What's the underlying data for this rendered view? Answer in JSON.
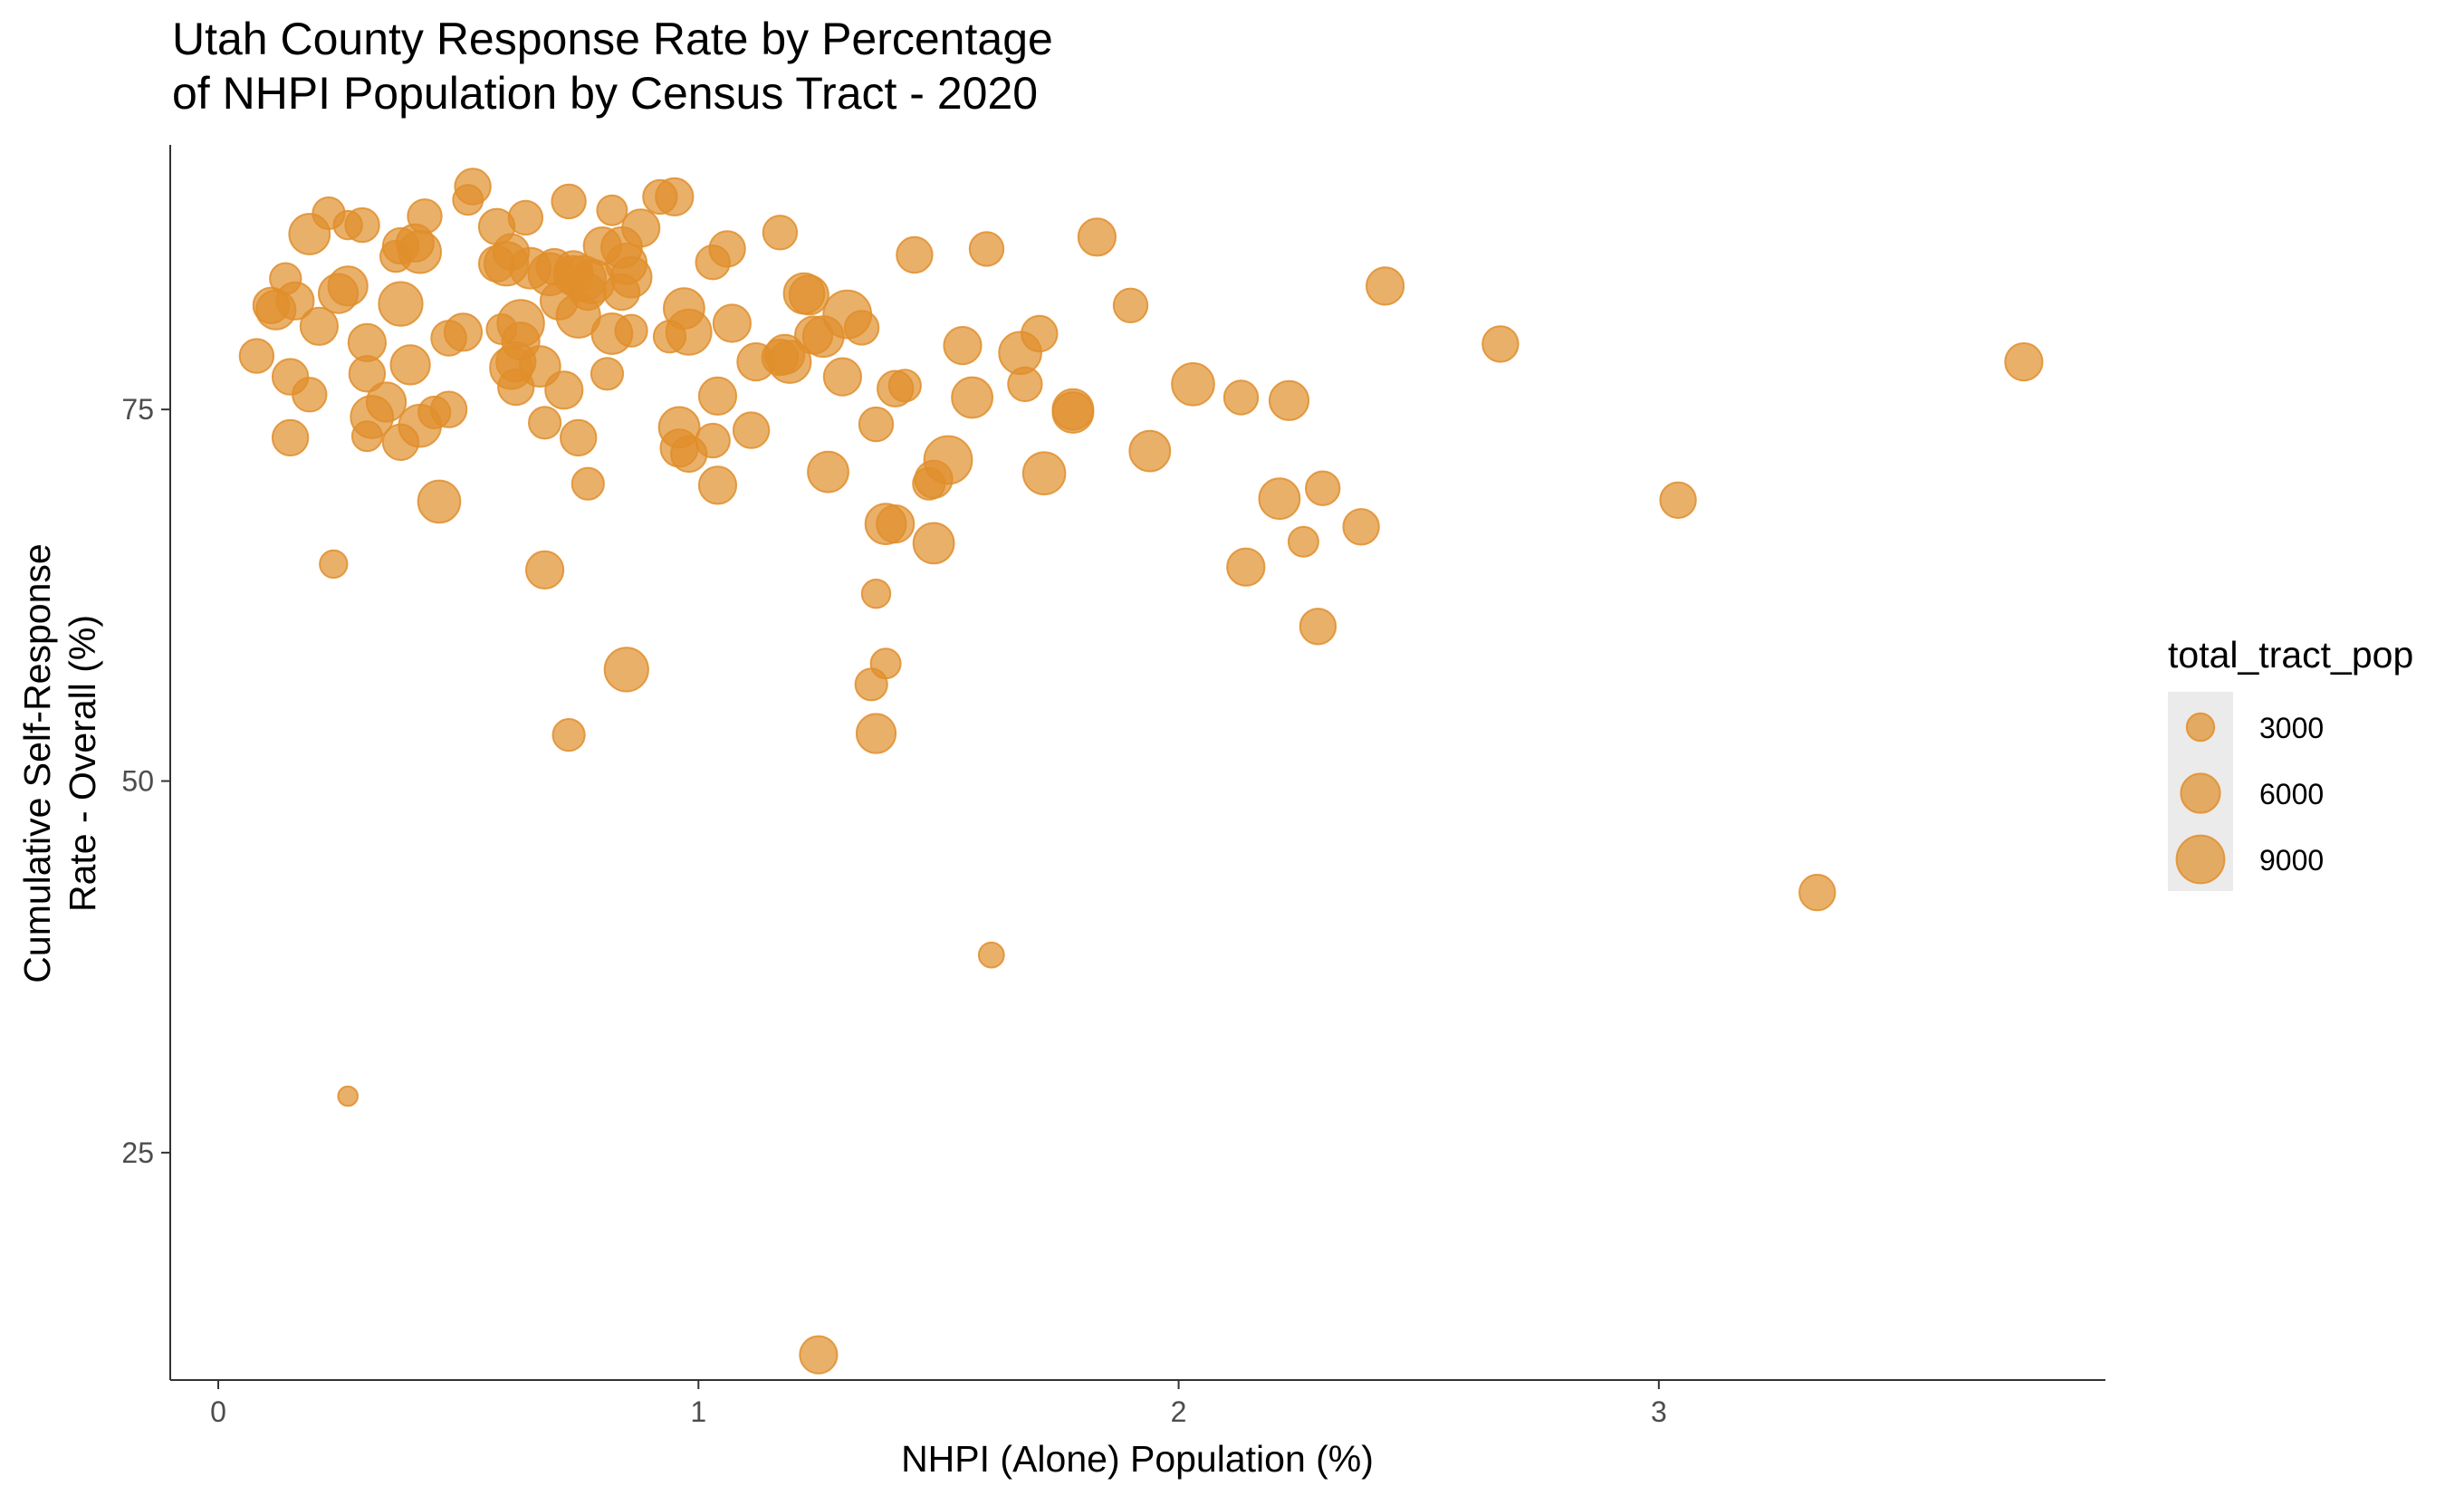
{
  "chart_data": {
    "type": "scatter",
    "title_line1": "Utah County Response Rate by Percentage",
    "title_line2": "of NHPI Population by Census Tract - 2020",
    "xlabel": "NHPI (Alone) Population (%)",
    "ylabel_line1": "Cumulative Self-Response",
    "ylabel_line2": "Rate - Overall (%)",
    "xlim": [
      -0.1,
      3.93
    ],
    "ylim": [
      9.7,
      92.8
    ],
    "x_ticks": [
      0,
      1,
      2,
      3
    ],
    "x_tick_labels": [
      "0",
      "1",
      "2",
      "3"
    ],
    "y_ticks": [
      25,
      50,
      75
    ],
    "y_tick_labels": [
      "25",
      "50",
      "75"
    ],
    "grid": false,
    "legend": {
      "title": "total_tract_pop",
      "position": "right",
      "entries": [
        {
          "label": "3000",
          "size": 3000
        },
        {
          "label": "6000",
          "size": 6000
        },
        {
          "label": "9000",
          "size": 9000
        }
      ]
    },
    "point_color": "#E08E2B",
    "point_opacity": 0.7,
    "points": [
      [
        0.08,
        78.6,
        4500
      ],
      [
        0.11,
        82.0,
        5000
      ],
      [
        0.12,
        81.7,
        6000
      ],
      [
        0.14,
        83.8,
        3800
      ],
      [
        0.15,
        77.2,
        5000
      ],
      [
        0.15,
        73.1,
        5000
      ],
      [
        0.16,
        82.3,
        5500
      ],
      [
        0.19,
        86.8,
        6500
      ],
      [
        0.19,
        76.0,
        4500
      ],
      [
        0.21,
        80.6,
        5500
      ],
      [
        0.23,
        88.2,
        4000
      ],
      [
        0.24,
        64.6,
        3000
      ],
      [
        0.25,
        82.8,
        6000
      ],
      [
        0.27,
        87.4,
        3200
      ],
      [
        0.27,
        28.8,
        1500
      ],
      [
        0.27,
        83.3,
        6000
      ],
      [
        0.3,
        87.4,
        4500
      ],
      [
        0.31,
        79.5,
        5500
      ],
      [
        0.31,
        77.4,
        5000
      ],
      [
        0.31,
        73.2,
        3500
      ],
      [
        0.32,
        74.5,
        7000
      ],
      [
        0.35,
        75.5,
        6000
      ],
      [
        0.37,
        85.3,
        3800
      ],
      [
        0.38,
        72.8,
        5000
      ],
      [
        0.38,
        82.1,
        7500
      ],
      [
        0.38,
        86.0,
        5000
      ],
      [
        0.4,
        78.0,
        6000
      ],
      [
        0.41,
        86.2,
        5500
      ],
      [
        0.42,
        73.9,
        7000
      ],
      [
        0.42,
        85.6,
        7000
      ],
      [
        0.43,
        88.0,
        4500
      ],
      [
        0.45,
        74.8,
        4000
      ],
      [
        0.46,
        68.8,
        7000
      ],
      [
        0.48,
        75.0,
        5000
      ],
      [
        0.48,
        79.8,
        4800
      ],
      [
        0.51,
        80.2,
        5500
      ],
      [
        0.52,
        89.1,
        3500
      ],
      [
        0.53,
        90.0,
        5000
      ],
      [
        0.58,
        87.3,
        5000
      ],
      [
        0.58,
        84.8,
        5000
      ],
      [
        0.59,
        80.4,
        3500
      ],
      [
        0.6,
        84.8,
        7500
      ],
      [
        0.61,
        85.6,
        5000
      ],
      [
        0.61,
        77.8,
        7000
      ],
      [
        0.62,
        76.5,
        5000
      ],
      [
        0.62,
        78.2,
        6000
      ],
      [
        0.63,
        79.6,
        5500
      ],
      [
        0.63,
        80.8,
        8500
      ],
      [
        0.64,
        87.9,
        4500
      ],
      [
        0.65,
        84.5,
        6500
      ],
      [
        0.67,
        77.9,
        6500
      ],
      [
        0.68,
        74.1,
        4000
      ],
      [
        0.68,
        64.2,
        5500
      ],
      [
        0.69,
        84.1,
        7000
      ],
      [
        0.7,
        84.6,
        5000
      ],
      [
        0.71,
        82.3,
        5500
      ],
      [
        0.72,
        76.3,
        5500
      ],
      [
        0.73,
        89.0,
        4500
      ],
      [
        0.73,
        53.1,
        4000
      ],
      [
        0.74,
        84.0,
        6000
      ],
      [
        0.74,
        84.4,
        5500
      ],
      [
        0.75,
        73.1,
        5000
      ],
      [
        0.75,
        81.3,
        7500
      ],
      [
        0.76,
        83.8,
        8000
      ],
      [
        0.77,
        82.9,
        5000
      ],
      [
        0.77,
        70.0,
        4000
      ],
      [
        0.78,
        83.6,
        7500
      ],
      [
        0.8,
        86.0,
        5500
      ],
      [
        0.81,
        77.4,
        4000
      ],
      [
        0.82,
        80.1,
        6500
      ],
      [
        0.82,
        88.4,
        3500
      ],
      [
        0.84,
        85.9,
        6500
      ],
      [
        0.84,
        82.9,
        5000
      ],
      [
        0.85,
        84.8,
        6500
      ],
      [
        0.85,
        57.5,
        7500
      ],
      [
        0.86,
        80.3,
        4000
      ],
      [
        0.86,
        83.9,
        6500
      ],
      [
        0.88,
        87.2,
        5500
      ],
      [
        0.92,
        89.3,
        4500
      ],
      [
        0.94,
        79.9,
        4000
      ],
      [
        0.95,
        89.3,
        5500
      ],
      [
        0.96,
        73.8,
        6500
      ],
      [
        0.96,
        72.4,
        5500
      ],
      [
        0.97,
        81.8,
        6500
      ],
      [
        0.98,
        72.0,
        5000
      ],
      [
        0.98,
        80.2,
        8000
      ],
      [
        1.03,
        84.9,
        4500
      ],
      [
        1.03,
        72.9,
        4500
      ],
      [
        1.04,
        75.9,
        5500
      ],
      [
        1.04,
        69.9,
        5500
      ],
      [
        1.06,
        85.8,
        5000
      ],
      [
        1.07,
        80.8,
        5500
      ],
      [
        1.11,
        73.6,
        5000
      ],
      [
        1.12,
        78.2,
        5500
      ],
      [
        1.17,
        78.5,
        5000
      ],
      [
        1.17,
        86.9,
        4500
      ],
      [
        1.18,
        78.7,
        6000
      ],
      [
        1.19,
        78.2,
        7000
      ],
      [
        1.22,
        82.8,
        6500
      ],
      [
        1.23,
        82.7,
        6000
      ],
      [
        1.24,
        80.0,
        5500
      ],
      [
        1.25,
        11.4,
        5500
      ],
      [
        1.26,
        79.9,
        6500
      ],
      [
        1.27,
        70.8,
        6500
      ],
      [
        1.3,
        77.2,
        5500
      ],
      [
        1.31,
        81.4,
        9000
      ],
      [
        1.34,
        80.5,
        4500
      ],
      [
        1.36,
        56.5,
        4000
      ],
      [
        1.37,
        62.6,
        3200
      ],
      [
        1.37,
        53.2,
        6000
      ],
      [
        1.37,
        74.0,
        4500
      ],
      [
        1.39,
        67.3,
        6500
      ],
      [
        1.39,
        57.9,
        3500
      ],
      [
        1.41,
        67.3,
        5500
      ],
      [
        1.41,
        76.4,
        5000
      ],
      [
        1.43,
        76.6,
        4000
      ],
      [
        1.45,
        85.4,
        5000
      ],
      [
        1.48,
        70.0,
        4000
      ],
      [
        1.49,
        66.0,
        6500
      ],
      [
        1.49,
        70.3,
        5500
      ],
      [
        1.52,
        71.6,
        9000
      ],
      [
        1.55,
        79.3,
        5500
      ],
      [
        1.57,
        75.8,
        6500
      ],
      [
        1.6,
        85.8,
        4500
      ],
      [
        1.61,
        38.3,
        2500
      ],
      [
        1.67,
        78.8,
        7000
      ],
      [
        1.68,
        76.7,
        4500
      ],
      [
        1.71,
        80.1,
        5000
      ],
      [
        1.72,
        70.7,
        7000
      ],
      [
        1.78,
        75.0,
        6500
      ],
      [
        1.78,
        74.8,
        6500
      ],
      [
        1.83,
        86.6,
        5500
      ],
      [
        1.9,
        82.0,
        4500
      ],
      [
        1.94,
        72.2,
        6500
      ],
      [
        2.03,
        76.7,
        7000
      ],
      [
        2.13,
        75.8,
        4500
      ],
      [
        2.14,
        64.4,
        5500
      ],
      [
        2.21,
        69.0,
        6500
      ],
      [
        2.23,
        75.6,
        6000
      ],
      [
        2.26,
        66.1,
        3500
      ],
      [
        2.29,
        60.4,
        5000
      ],
      [
        2.3,
        69.7,
        4500
      ],
      [
        2.38,
        67.1,
        5000
      ],
      [
        2.43,
        83.3,
        5500
      ],
      [
        2.67,
        79.4,
        5000
      ],
      [
        3.04,
        68.9,
        5000
      ],
      [
        3.33,
        42.5,
        5000
      ],
      [
        3.76,
        78.2,
        5500
      ]
    ]
  }
}
